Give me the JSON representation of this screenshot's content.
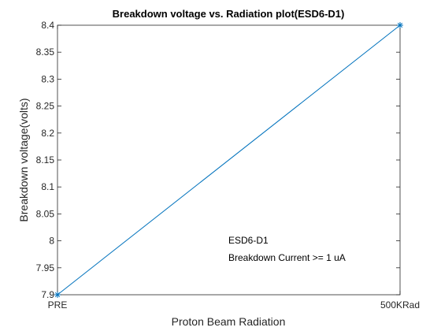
{
  "chart_data": {
    "type": "line",
    "title": "Breakdown voltage vs. Radiation plot(ESD6-D1)",
    "xlabel": "Proton Beam Radiation",
    "ylabel": "Breakdown voltage(volts)",
    "categories": [
      "PRE",
      "500KRad"
    ],
    "series": [
      {
        "values": [
          7.9,
          8.4
        ],
        "color": "#0072BD",
        "marker": "asterisk"
      }
    ],
    "ylim": [
      7.9,
      8.4
    ],
    "yticks": [
      "7.9",
      "7.95",
      "8",
      "8.05",
      "8.1",
      "8.15",
      "8.2",
      "8.25",
      "8.3",
      "8.35",
      "8.4"
    ],
    "grid": false,
    "annotations": [
      "ESD6-D1",
      "Breakdown Current >= 1 uA"
    ]
  }
}
